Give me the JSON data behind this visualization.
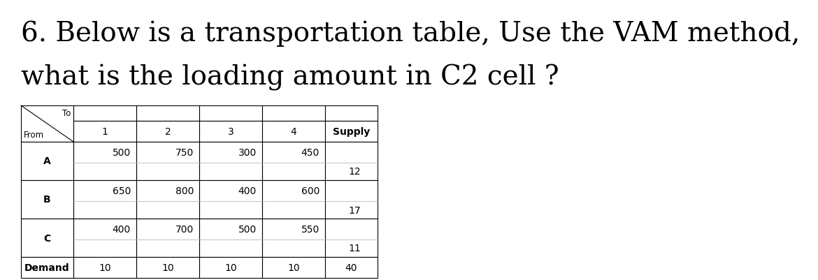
{
  "title_line1": "6. Below is a transportation table, Use the VAM method,",
  "title_line2": "what is the loading amount in C2 cell ?",
  "title_fontsize": 28,
  "title_font": "DejaVu Serif",
  "bg_color": "#ffffff",
  "table": {
    "header_row": [
      "",
      "1",
      "2",
      "3",
      "4",
      "Supply"
    ],
    "rows": [
      {
        "label": "A",
        "costs": [
          500,
          750,
          300,
          450
        ],
        "supply": 12
      },
      {
        "label": "B",
        "costs": [
          650,
          800,
          400,
          600
        ],
        "supply": 17
      },
      {
        "label": "C",
        "costs": [
          400,
          700,
          500,
          550
        ],
        "supply": 11
      }
    ],
    "demand_label": "Demand",
    "demand": [
      10,
      10,
      10,
      10
    ],
    "total_demand": 40,
    "corner_top": "To",
    "corner_bot": "From"
  },
  "text_color": "#000000"
}
